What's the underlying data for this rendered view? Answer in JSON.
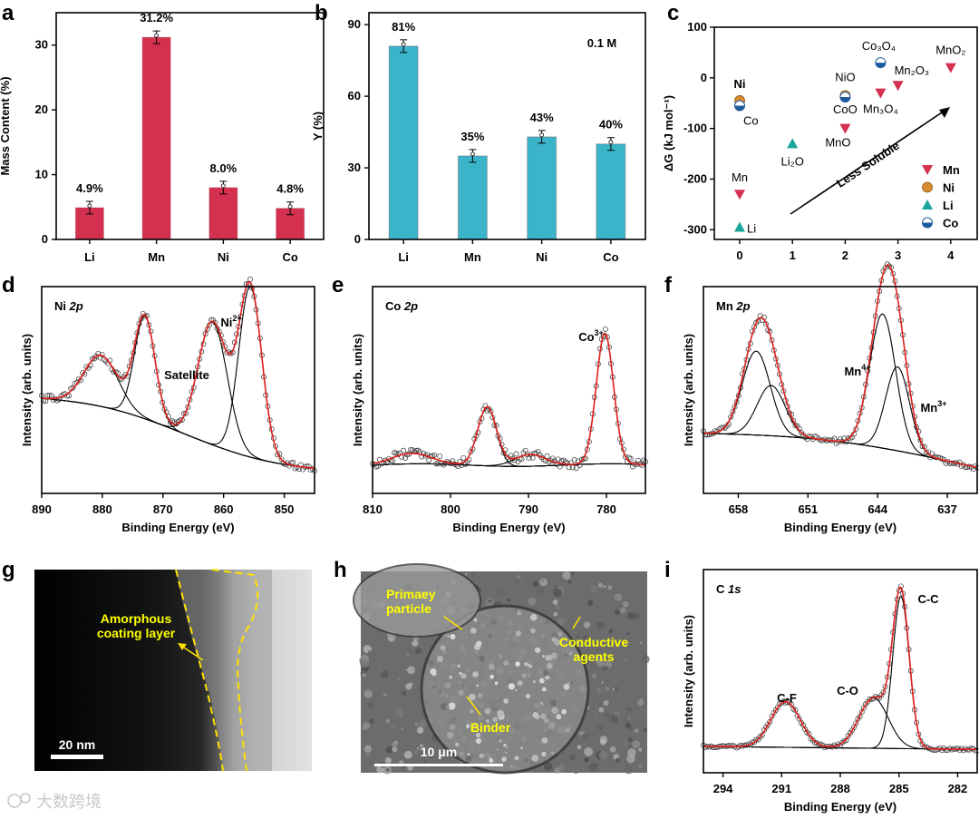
{
  "watermark": "大数跨境",
  "colors": {
    "red": "#d4304f",
    "cyan": "#3bb3c9",
    "orange": "#d98a2b",
    "teal": "#19a69c",
    "blue": "#1f5a9e",
    "fit": "#e0201c"
  },
  "panels": {
    "a": {
      "letter": "a",
      "chart_data": {
        "type": "bar",
        "categories": [
          "Li",
          "Mn",
          "Ni",
          "Co"
        ],
        "values": [
          4.9,
          31.2,
          8.0,
          4.8
        ],
        "value_labels": [
          "4.9%",
          "31.2%",
          "8.0%",
          "4.8%"
        ],
        "ylabel": "Mass Content (%)",
        "ylim": [
          0,
          35
        ],
        "yticks": [
          "0",
          "10",
          "20",
          "30"
        ]
      }
    },
    "b": {
      "letter": "b",
      "annotation": "0.1 M",
      "chart_data": {
        "type": "bar",
        "categories": [
          "Li",
          "Mn",
          "Ni",
          "Co"
        ],
        "values": [
          81,
          35,
          43,
          40
        ],
        "value_labels": [
          "81%",
          "35%",
          "43%",
          "40%"
        ],
        "ylabel": "Y (%)",
        "ylim": [
          0,
          95
        ],
        "yticks": [
          "0",
          "30",
          "60",
          "90"
        ]
      }
    },
    "c": {
      "letter": "c",
      "arrow_label": "Less Soluble",
      "chart_data": {
        "type": "scatter",
        "ylabel": "ΔG (kJ mol⁻¹)",
        "xlim": [
          -0.5,
          4.5
        ],
        "ylim": [
          -320,
          100
        ],
        "xticks": [
          "0",
          "1",
          "2",
          "3",
          "4"
        ],
        "yticks": [
          "100",
          "0",
          "-100",
          "-200",
          "-300"
        ],
        "legend": [
          "Mn",
          "Ni",
          "Li",
          "Co"
        ],
        "points": [
          {
            "x": 0,
            "y": -230,
            "series": "Mn",
            "label": "Mn"
          },
          {
            "x": 0,
            "y": -45,
            "series": "Ni",
            "label": "Ni"
          },
          {
            "x": 0,
            "y": -55,
            "series": "Co",
            "label": "Co"
          },
          {
            "x": 0,
            "y": -295,
            "series": "Li",
            "label": "Li"
          },
          {
            "x": 1,
            "y": -130,
            "series": "Li",
            "label": "Li₂O"
          },
          {
            "x": 2,
            "y": -35,
            "series": "Ni",
            "label": "NiO"
          },
          {
            "x": 2,
            "y": -38,
            "series": "Co",
            "label": "CoO"
          },
          {
            "x": 2,
            "y": -100,
            "series": "Mn",
            "label": "MnO"
          },
          {
            "x": 2.67,
            "y": -30,
            "series": "Mn",
            "label": "Mn₃O₄"
          },
          {
            "x": 2.67,
            "y": 30,
            "series": "Co",
            "label": "Co₃O₄"
          },
          {
            "x": 3,
            "y": -15,
            "series": "Mn",
            "label": "Mn₂O₃"
          },
          {
            "x": 4,
            "y": 20,
            "series": "Mn",
            "label": "MnO₂"
          }
        ]
      }
    },
    "d": {
      "letter": "d",
      "title": "Ni 2p",
      "labels": [
        "Ni²⁺",
        "Satellite"
      ],
      "chart_data": {
        "type": "line",
        "xlabel": "Binding Energy (eV)",
        "ylabel": "Intensity (arb. units)",
        "xlim": [
          890,
          845
        ],
        "xticks": [
          "890",
          "880",
          "870",
          "860",
          "850"
        ],
        "peaks": [
          {
            "center": 880.2,
            "height": 0.3,
            "width": 2.8
          },
          {
            "center": 873.0,
            "height": 0.6,
            "width": 1.7
          },
          {
            "center": 861.8,
            "height": 0.72,
            "width": 2.4
          },
          {
            "center": 855.6,
            "height": 1.0,
            "width": 1.9
          }
        ]
      }
    },
    "e": {
      "letter": "e",
      "title": "Co 2p",
      "labels": [
        "Co³⁺"
      ],
      "chart_data": {
        "type": "line",
        "xlabel": "Binding Energy (eV)",
        "ylabel": "Intensity (arb. units)",
        "xlim": [
          810,
          775
        ],
        "xticks": [
          "810",
          "800",
          "790",
          "780"
        ],
        "peaks": [
          {
            "center": 805.0,
            "height": 0.08,
            "width": 2.5
          },
          {
            "center": 795.3,
            "height": 0.45,
            "width": 1.2
          },
          {
            "center": 789.8,
            "height": 0.09,
            "width": 2.0
          },
          {
            "center": 780.2,
            "height": 1.0,
            "width": 1.1
          }
        ]
      }
    },
    "f": {
      "letter": "f",
      "title": "Mn 2p",
      "labels": [
        "Mn⁴⁺",
        "Mn³⁺"
      ],
      "chart_data": {
        "type": "line",
        "xlabel": "Binding Energy (eV)",
        "ylabel": "Intensity (arb. units)",
        "xlim": [
          661.5,
          634
        ],
        "xticks": [
          "658",
          "651",
          "644",
          "637"
        ],
        "peaks": [
          {
            "center": 656.2,
            "height": 0.5,
            "width": 1.4
          },
          {
            "center": 654.7,
            "height": 0.3,
            "width": 1.4
          },
          {
            "center": 643.5,
            "height": 0.8,
            "width": 1.3
          },
          {
            "center": 642.0,
            "height": 0.5,
            "width": 1.2
          }
        ]
      }
    },
    "g": {
      "letter": "g",
      "labels": [
        "Amorphous",
        "coating layer"
      ],
      "scale": "20 nm"
    },
    "h": {
      "letter": "h",
      "labels": [
        "Primaey",
        "particle",
        "Conductive",
        "agents",
        "Binder"
      ],
      "scale": "10 μm"
    },
    "i": {
      "letter": "i",
      "title": "C 1s",
      "labels": [
        "C-C",
        "C-O",
        "C-F"
      ],
      "chart_data": {
        "type": "line",
        "xlabel": "Binding Energy (eV)",
        "ylabel": "Intensity (arb. units)",
        "xlim": [
          295,
          281
        ],
        "xticks": [
          "294",
          "291",
          "288",
          "285",
          "282"
        ],
        "peaks": [
          {
            "center": 290.8,
            "height": 0.3,
            "width": 0.75
          },
          {
            "center": 286.3,
            "height": 0.33,
            "width": 0.75
          },
          {
            "center": 284.9,
            "height": 1.0,
            "width": 0.42
          }
        ]
      }
    }
  }
}
